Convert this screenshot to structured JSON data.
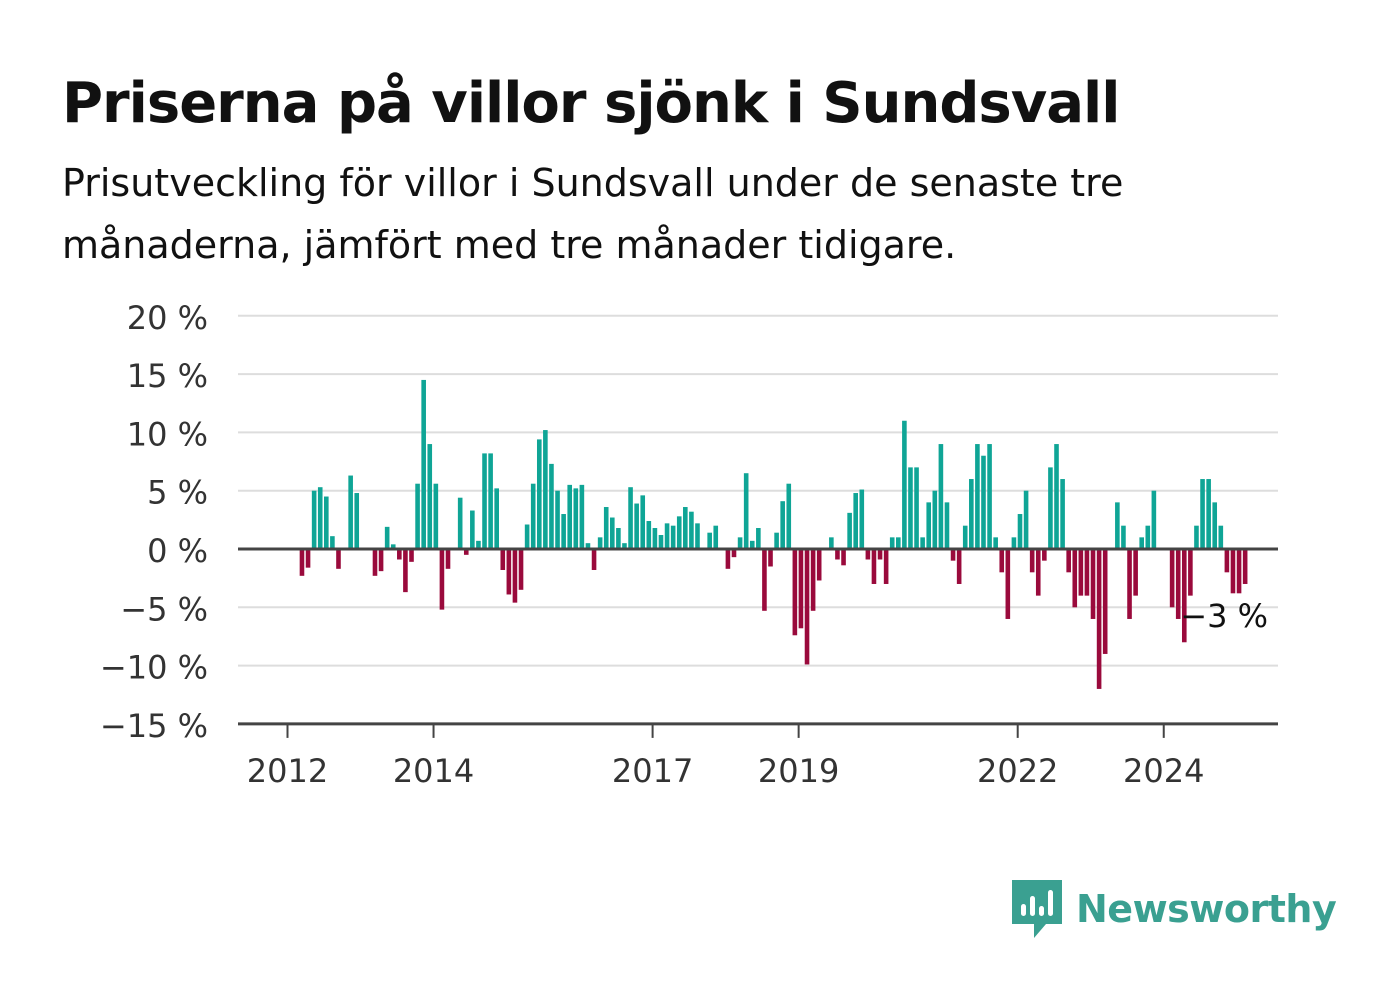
{
  "title": "Priserna på villor sjönk i Sundsvall",
  "subtitle": "Prisutveckling för villor i Sundsvall under de senaste tre månaderna, jämfört med tre månader tidigare.",
  "brand": "Newsworthy",
  "colors": {
    "positive": "#0fa596",
    "negative": "#9a0a3c",
    "axis": "#444444",
    "grid": "#dddddd",
    "brand": "#3aa091"
  },
  "chart_data": {
    "type": "bar",
    "unit": "%",
    "ylim": [
      -15,
      20
    ],
    "y_ticks": [
      20,
      15,
      10,
      5,
      0,
      -5,
      -10,
      -15
    ],
    "y_tick_labels": [
      "20 %",
      "15 %",
      "10 %",
      "5 %",
      "0 %",
      "−5 %",
      "−10 %",
      "−15 %"
    ],
    "x_tick_labels": [
      "2012",
      "2014",
      "2017",
      "2019",
      "2022",
      "2024"
    ],
    "x_tick_years": [
      2012,
      2014,
      2017,
      2019,
      2022,
      2024
    ],
    "start_year": 2012,
    "start_month": 1,
    "last_label": "−3 %",
    "grid": true,
    "values": [
      0,
      0,
      -2.3,
      -1.6,
      5.0,
      5.3,
      4.5,
      1.1,
      -1.7,
      0,
      6.3,
      4.8,
      0,
      0,
      -2.3,
      -1.9,
      1.9,
      0.4,
      -0.9,
      -3.7,
      -1.1,
      5.6,
      14.5,
      9.0,
      5.6,
      -5.2,
      -1.7,
      0,
      4.4,
      -0.5,
      3.3,
      0.7,
      8.2,
      8.2,
      5.2,
      -1.8,
      -3.9,
      -4.6,
      -3.5,
      2.1,
      5.6,
      9.4,
      10.2,
      7.3,
      5.0,
      3.0,
      5.5,
      5.2,
      5.5,
      0.5,
      -1.8,
      1.0,
      3.6,
      2.7,
      1.8,
      0.5,
      5.3,
      3.9,
      4.6,
      2.4,
      1.8,
      1.2,
      2.2,
      2.0,
      2.8,
      3.6,
      3.2,
      2.2,
      0,
      1.4,
      2.0,
      0,
      -1.7,
      -0.7,
      1.0,
      6.5,
      0.7,
      1.8,
      -5.3,
      -1.5,
      1.4,
      4.1,
      5.6,
      -7.4,
      -6.8,
      -9.9,
      -5.3,
      -2.7,
      0,
      1.0,
      -0.9,
      -1.4,
      3.1,
      4.8,
      5.1,
      -0.9,
      -3.0,
      -0.9,
      -3.0,
      1.0,
      1.0,
      11.0,
      7.0,
      7.0,
      1.0,
      4.0,
      5.0,
      9.0,
      4.0,
      -1.0,
      -3.0,
      2.0,
      6.0,
      9.0,
      8.0,
      9.0,
      1.0,
      -2.0,
      -6.0,
      1.0,
      3.0,
      5.0,
      -2.0,
      -4.0,
      -1.0,
      7.0,
      9.0,
      6.0,
      -2.0,
      -5.0,
      -4.0,
      -4.0,
      -6.0,
      -12.0,
      -9.0,
      0,
      4.0,
      2.0,
      -6.0,
      -4.0,
      1.0,
      2.0,
      5.0,
      0,
      0,
      -5.0,
      -6.0,
      -8.0,
      -4.0,
      2.0,
      6.0,
      6.0,
      4.0,
      2.0,
      -2.0,
      -3.8,
      -3.8,
      -3.0
    ]
  }
}
